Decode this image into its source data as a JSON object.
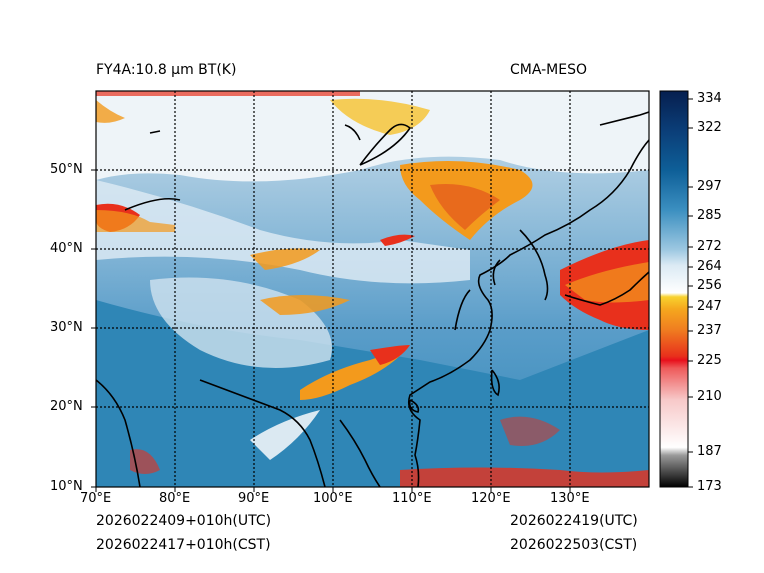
{
  "header": {
    "product_title": "FY4A:10.8 μm BT(K)",
    "source_label": "CMA-MESO"
  },
  "footer": {
    "init_utc": "2026022409+010h(UTC)",
    "init_cst": "2026022417+010h(CST)",
    "valid_utc": "2026022419(UTC)",
    "valid_cst": "2026022503(CST)"
  },
  "map_axes": {
    "lon_ticks": [
      "70°E",
      "80°E",
      "90°E",
      "100°E",
      "110°E",
      "120°E",
      "130°E"
    ],
    "lat_ticks": [
      "10°N",
      "20°N",
      "30°N",
      "40°N",
      "50°N"
    ]
  },
  "colorbar": {
    "unit": "K",
    "ticks": [
      "334",
      "322",
      "297",
      "285",
      "272",
      "264",
      "256",
      "247",
      "237",
      "225",
      "210",
      "187",
      "173"
    ]
  },
  "colors": {
    "ocean_blue": "#2f86b6",
    "land_blue": "#6aa8d1",
    "cloud_white": "#eef4f8",
    "cold_orange": "#f39a1c",
    "cold_red": "#e8301c",
    "coast_black": "#000000"
  }
}
